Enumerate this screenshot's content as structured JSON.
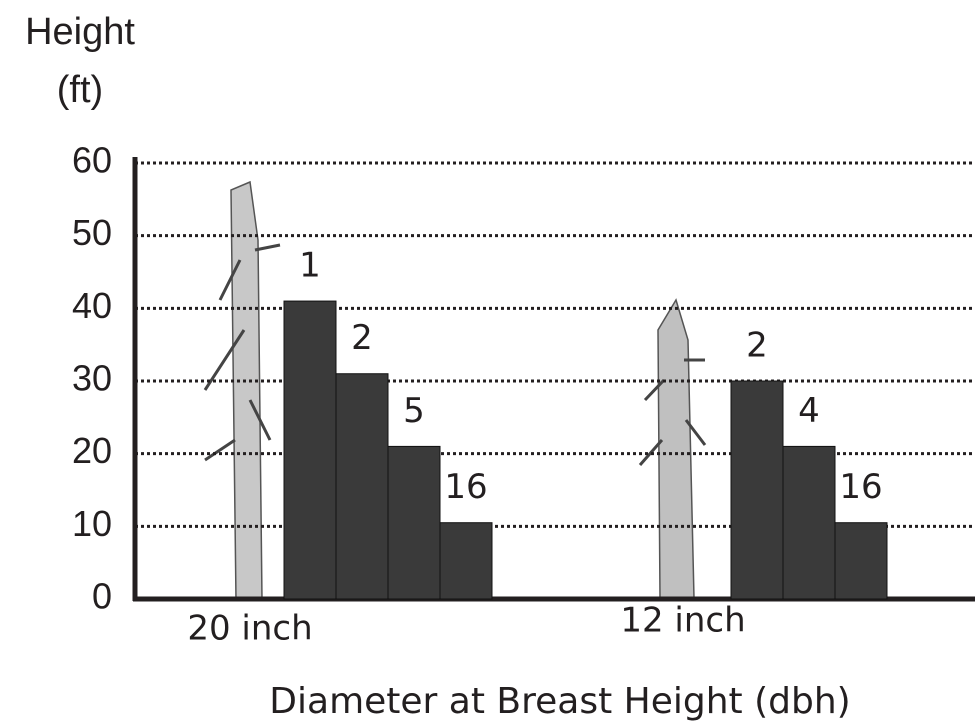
{
  "chart_data": {
    "type": "bar",
    "ylabel": [
      "Height",
      "(ft)"
    ],
    "xlabel": "Diameter at Breast Height (dbh)",
    "groups": [
      {
        "name": "20 inch",
        "values": [
          41,
          31,
          21,
          10.5
        ],
        "labels": [
          "1",
          "2",
          "5",
          "16"
        ]
      },
      {
        "name": "12 inch",
        "values": [
          30,
          21,
          10.5
        ],
        "labels": [
          "2",
          "4",
          "16"
        ]
      }
    ],
    "color": "#3a3a3a",
    "ylim": [
      0,
      60
    ],
    "yticks": [
      0,
      10,
      20,
      30,
      40,
      50,
      60
    ],
    "grid": true
  }
}
